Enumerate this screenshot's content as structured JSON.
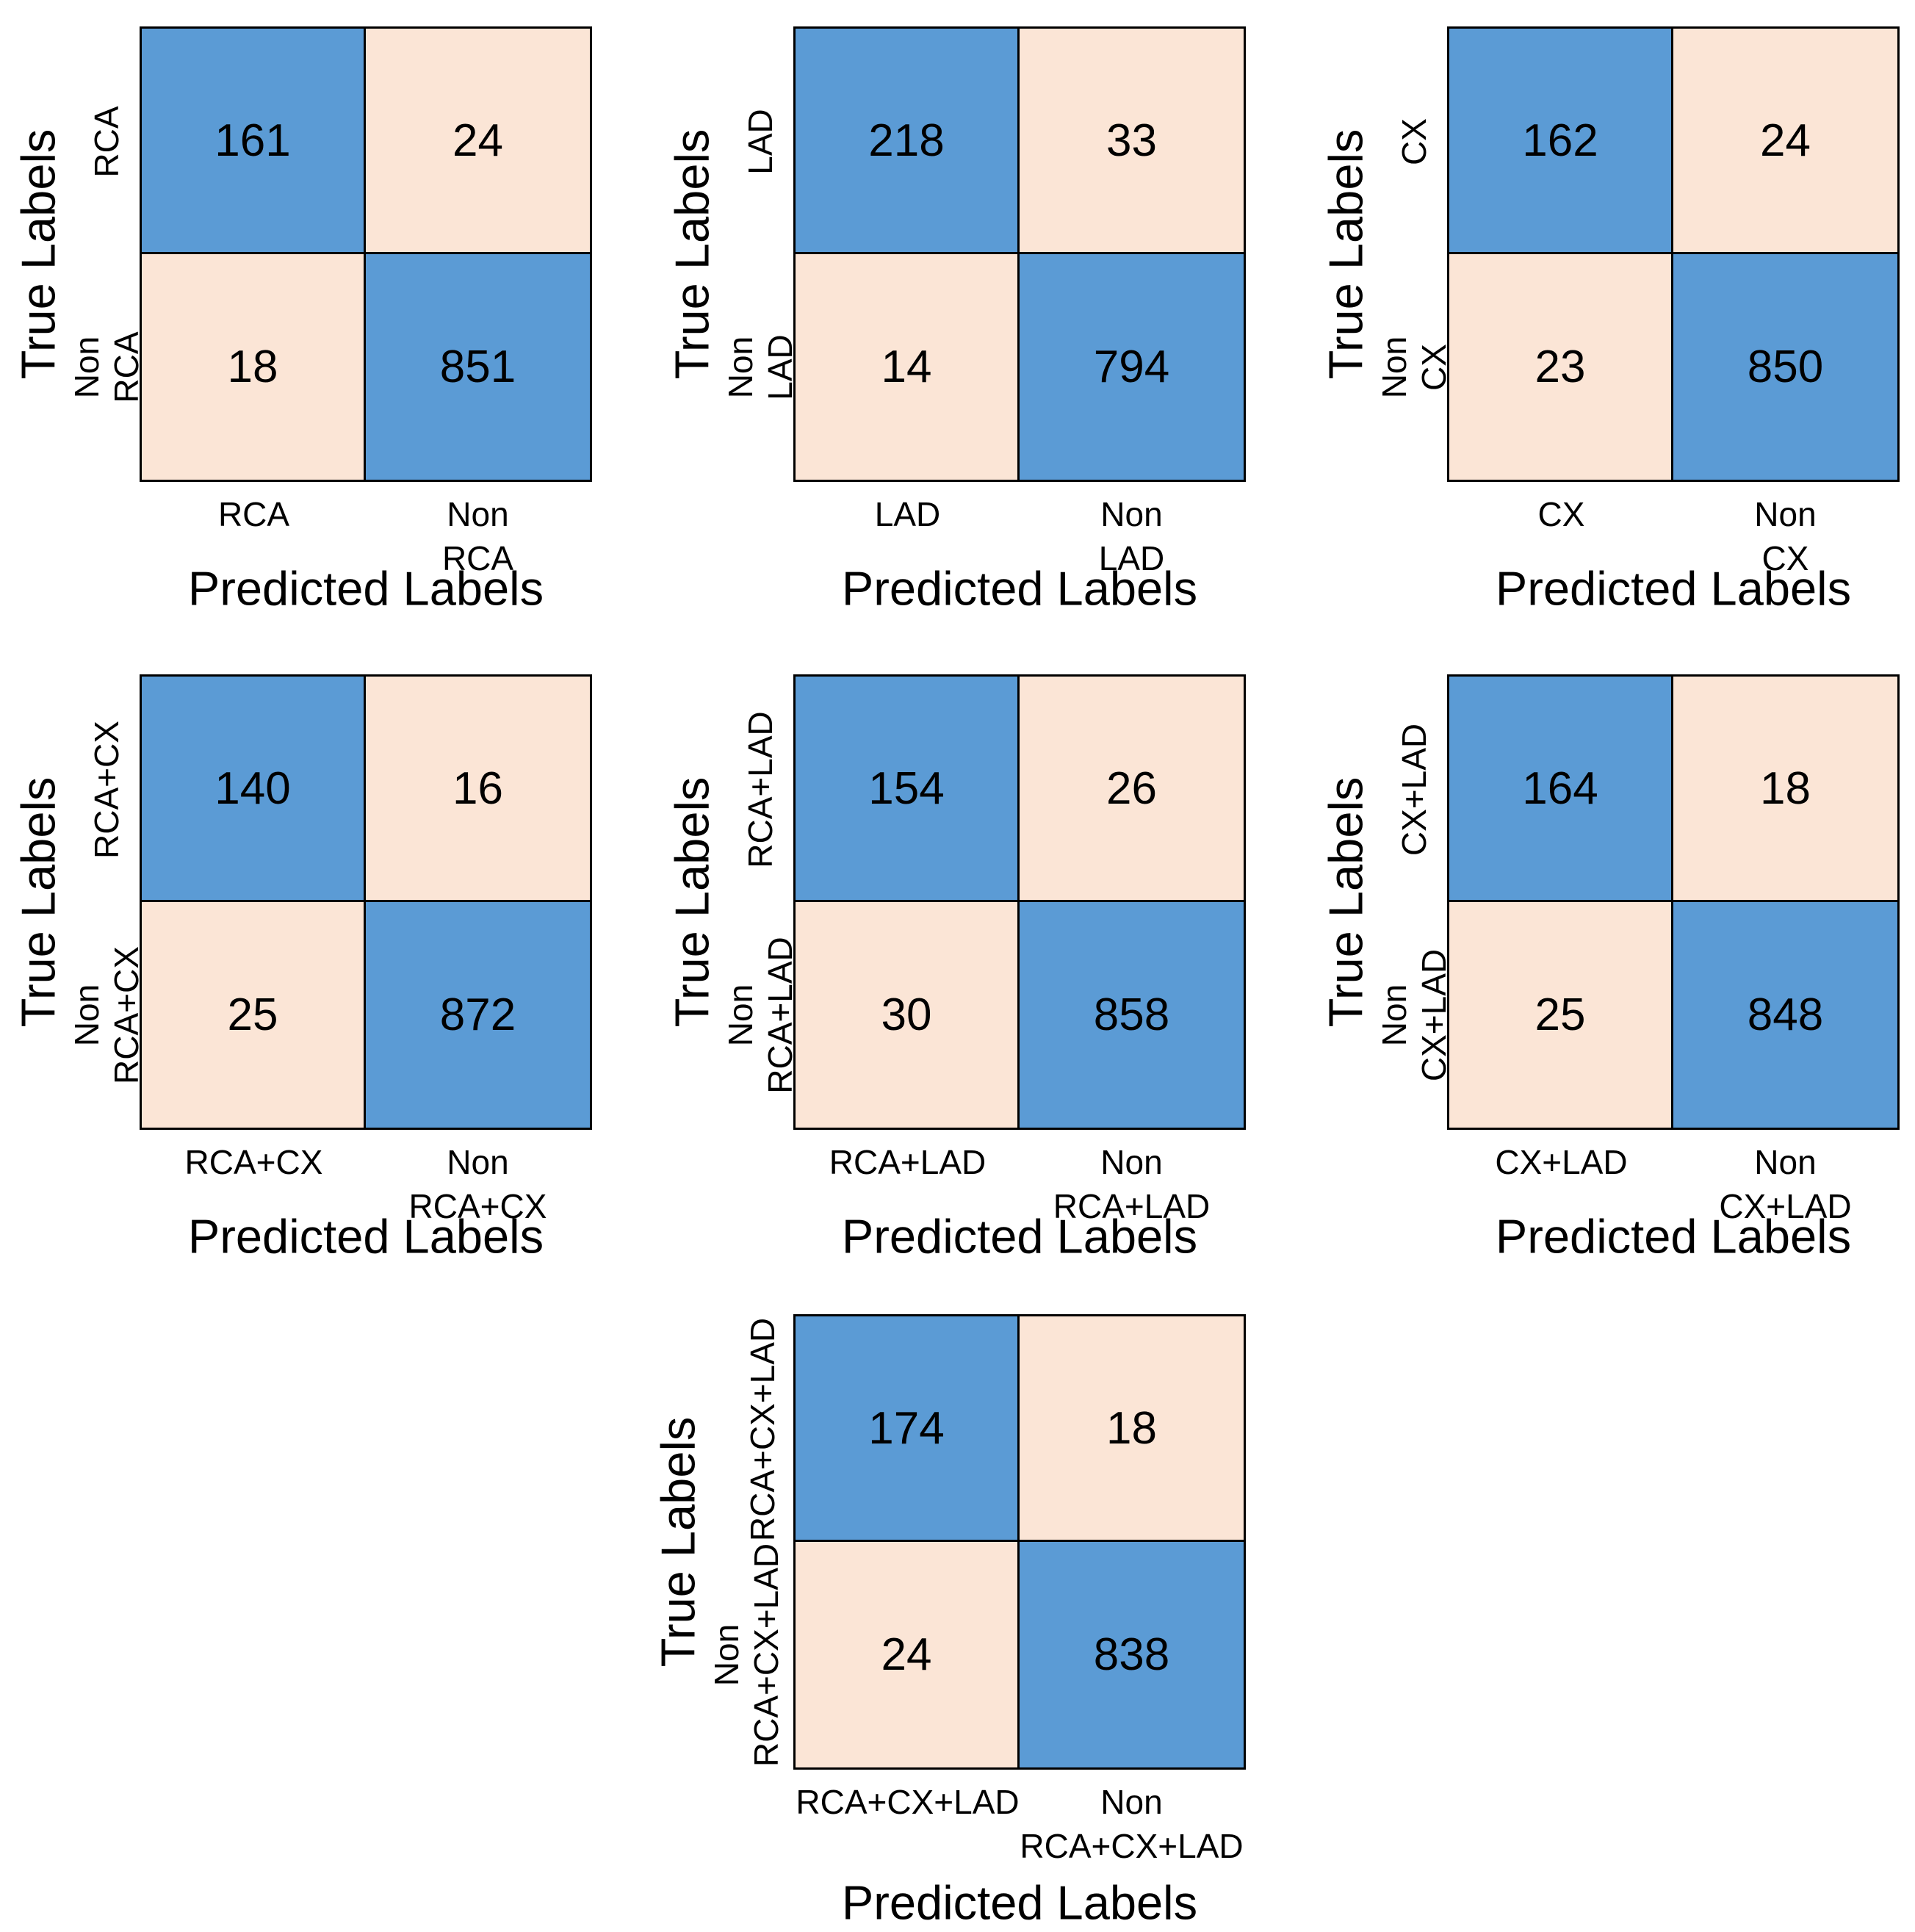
{
  "figure": {
    "background": "#ffffff",
    "text_color": "#000000",
    "cell_border_color": "#000000",
    "colors": {
      "blue": "#5b9bd5",
      "cream": "#fbe5d6"
    },
    "y_axis_title": "True Labels",
    "x_axis_title": "Predicted Labels"
  },
  "chart_data": [
    {
      "type": "heatmap",
      "title": "RCA",
      "ylabel": "True Labels",
      "xlabel": "Predicted Labels",
      "rows": [
        "RCA",
        "Non RCA"
      ],
      "cols": [
        "RCA",
        "Non RCA"
      ],
      "values": [
        [
          161,
          24
        ],
        [
          18,
          851
        ]
      ],
      "cell_colors": [
        [
          "blue",
          "cream"
        ],
        [
          "cream",
          "blue"
        ]
      ]
    },
    {
      "type": "heatmap",
      "title": "LAD",
      "ylabel": "True Labels",
      "xlabel": "Predicted Labels",
      "rows": [
        "LAD",
        "Non LAD"
      ],
      "cols": [
        "LAD",
        "Non LAD"
      ],
      "values": [
        [
          218,
          33
        ],
        [
          14,
          794
        ]
      ],
      "cell_colors": [
        [
          "blue",
          "cream"
        ],
        [
          "cream",
          "blue"
        ]
      ]
    },
    {
      "type": "heatmap",
      "title": "CX",
      "ylabel": "True Labels",
      "xlabel": "Predicted Labels",
      "rows": [
        "CX",
        "Non CX"
      ],
      "cols": [
        "CX",
        "Non CX"
      ],
      "values": [
        [
          162,
          24
        ],
        [
          23,
          850
        ]
      ],
      "cell_colors": [
        [
          "blue",
          "cream"
        ],
        [
          "cream",
          "blue"
        ]
      ]
    },
    {
      "type": "heatmap",
      "title": "RCA+CX",
      "ylabel": "True Labels",
      "xlabel": "Predicted Labels",
      "rows": [
        "RCA+CX",
        "Non RCA+CX"
      ],
      "cols": [
        "RCA+CX",
        "Non RCA+CX"
      ],
      "values": [
        [
          140,
          16
        ],
        [
          25,
          872
        ]
      ],
      "cell_colors": [
        [
          "blue",
          "cream"
        ],
        [
          "cream",
          "blue"
        ]
      ]
    },
    {
      "type": "heatmap",
      "title": "RCA+LAD",
      "ylabel": "True Labels",
      "xlabel": "Predicted Labels",
      "rows": [
        "RCA+LAD",
        "Non RCA+LAD"
      ],
      "cols": [
        "RCA+LAD",
        "Non RCA+LAD"
      ],
      "values": [
        [
          154,
          26
        ],
        [
          30,
          858
        ]
      ],
      "cell_colors": [
        [
          "blue",
          "cream"
        ],
        [
          "cream",
          "blue"
        ]
      ]
    },
    {
      "type": "heatmap",
      "title": "CX+LAD",
      "ylabel": "True Labels",
      "xlabel": "Predicted Labels",
      "rows": [
        "CX+LAD",
        "Non CX+LAD"
      ],
      "cols": [
        "CX+LAD",
        "Non CX+LAD"
      ],
      "values": [
        [
          164,
          18
        ],
        [
          25,
          848
        ]
      ],
      "cell_colors": [
        [
          "blue",
          "cream"
        ],
        [
          "cream",
          "blue"
        ]
      ]
    },
    {
      "type": "heatmap",
      "title": "RCA+CX+LAD",
      "ylabel": "True Labels",
      "xlabel": "Predicted Labels",
      "rows": [
        "RCA+CX+LAD",
        "Non\nRCA+CX+LAD"
      ],
      "cols": [
        "RCA+CX+LAD",
        "Non\nRCA+CX+LAD"
      ],
      "values": [
        [
          174,
          18
        ],
        [
          24,
          838
        ]
      ],
      "cell_colors": [
        [
          "blue",
          "cream"
        ],
        [
          "cream",
          "blue"
        ]
      ]
    }
  ]
}
